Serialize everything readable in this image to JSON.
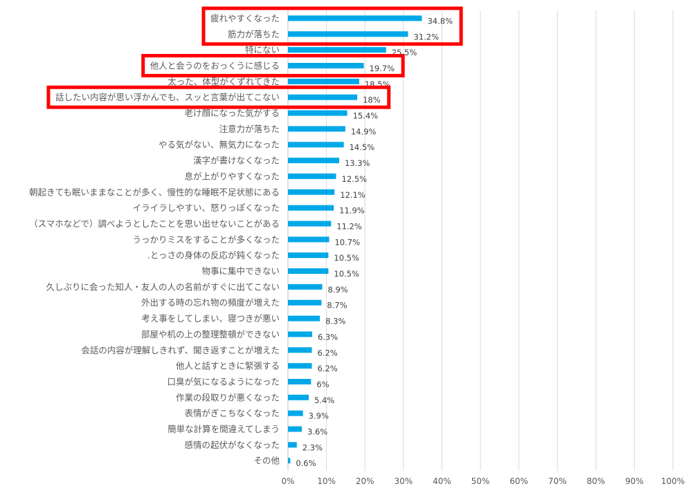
{
  "chart_data": {
    "type": "bar",
    "orientation": "horizontal",
    "categories": [
      "疲れやすくなった",
      "筋力が落ちた",
      "特にない",
      "他人と会うのをおっくうに感じる",
      "太った、体型がくずれてきた",
      "話したい内容が思い浮かんでも、スッと言葉が出てこない",
      "老け顔になった気がする",
      "注意力が落ちた",
      "やる気がない、無気力になった",
      "漢字が書けなくなった",
      "息が上がりやすくなった",
      "朝起きても眠いままなことが多く、慢性的な睡眠不足状態にある",
      "イライラしやすい、怒りっぽくなった",
      "（スマホなどで）調べようとしたことを思い出せないことがある",
      "うっかりミスをすることが多くなった",
      ".とっさの身体の反応が鈍くなった",
      "物事に集中できない",
      "久しぶりに会った知人・友人の人の名前がすぐに出てこない",
      "外出する時の忘れ物の頻度が増えた",
      "考え事をしてしまい、寝つきが悪い",
      "部屋や机の上の整理整頓ができない",
      "会話の内容が理解しきれず、聞き返すことが増えた",
      "他人と話すときに緊張する",
      "口臭が気になるようになった",
      "作業の段取りが悪くなった",
      "表情がぎこちなくなった",
      "簡単な計算を間違えてしまう",
      "感情の起伏がなくなった",
      "その他"
    ],
    "values": [
      34.8,
      31.2,
      25.5,
      19.7,
      18.5,
      18,
      15.4,
      14.9,
      14.5,
      13.3,
      12.5,
      12.1,
      11.9,
      11.2,
      10.7,
      10.5,
      10.5,
      8.9,
      8.7,
      8.3,
      6.3,
      6.2,
      6.2,
      6,
      5.4,
      3.9,
      3.6,
      2.3,
      0.6
    ],
    "value_labels": [
      "34.8%",
      "31.2%",
      "25.5%",
      "19.7%",
      "18.5%",
      "18%",
      "15.4%",
      "14.9%",
      "14.5%",
      "13.3%",
      "12.5%",
      "12.1%",
      "11.9%",
      "11.2%",
      "10.7%",
      "10.5%",
      "10.5%",
      "8.9%",
      "8.7%",
      "8.3%",
      "6.3%",
      "6.2%",
      "6.2%",
      "6%",
      "5.4%",
      "3.9%",
      "3.6%",
      "2.3%",
      "0.6%"
    ],
    "xlim": [
      0,
      100
    ],
    "x_ticks": [
      "0%",
      "10%",
      "20%",
      "30%",
      "40%",
      "50%",
      "60%",
      "70%",
      "80%",
      "90%",
      "100%"
    ],
    "grid": true,
    "title": "",
    "xlabel": "",
    "ylabel": "",
    "highlighted_groups": [
      [
        0,
        1
      ],
      [
        3
      ],
      [
        5
      ]
    ],
    "colors": {
      "bar": "#00a8e8",
      "highlight": "#ff0000",
      "grid": "#d9d9d9",
      "text": "#595959"
    }
  }
}
